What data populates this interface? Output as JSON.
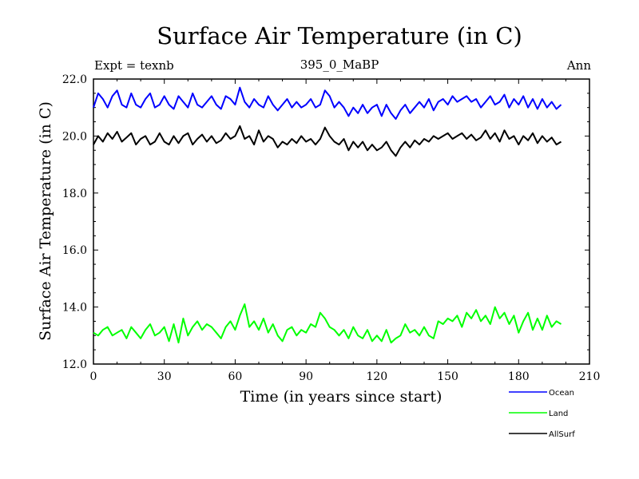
{
  "chart_data": {
    "type": "line",
    "title": "Surface Air Temperature (in C)",
    "subtitle": "395_0_MaBP",
    "expt_label": "Expt = texnb",
    "season_label": "Ann",
    "xlabel": "Time (in years since start)",
    "ylabel": "Surface Air Temperature (in C)",
    "xlim": [
      0,
      210
    ],
    "ylim": [
      12,
      22
    ],
    "xticks": [
      0,
      30,
      60,
      90,
      120,
      150,
      180,
      210
    ],
    "yticks": [
      "12.0",
      "14.0",
      "16.0",
      "18.0",
      "20.0",
      "22.0"
    ],
    "series": [
      {
        "name": "Ocean",
        "color": "#0000ff",
        "x": [
          0,
          2,
          4,
          6,
          8,
          10,
          12,
          14,
          16,
          18,
          20,
          22,
          24,
          26,
          28,
          30,
          32,
          34,
          36,
          38,
          40,
          42,
          44,
          46,
          48,
          50,
          52,
          54,
          56,
          58,
          60,
          62,
          64,
          66,
          68,
          70,
          72,
          74,
          76,
          78,
          80,
          82,
          84,
          86,
          88,
          90,
          92,
          94,
          96,
          98,
          100,
          102,
          104,
          106,
          108,
          110,
          112,
          114,
          116,
          118,
          120,
          122,
          124,
          126,
          128,
          130,
          132,
          134,
          136,
          138,
          140,
          142,
          144,
          146,
          148,
          150,
          152,
          154,
          156,
          158,
          160,
          162,
          164,
          166,
          168,
          170,
          172,
          174,
          176,
          178,
          180,
          182,
          184,
          186,
          188,
          190,
          192,
          194,
          196,
          198
        ],
        "values": [
          21.0,
          21.5,
          21.3,
          21.0,
          21.4,
          21.6,
          21.1,
          21.0,
          21.5,
          21.1,
          21.0,
          21.3,
          21.5,
          21.0,
          21.1,
          21.4,
          21.1,
          20.95,
          21.4,
          21.2,
          21.0,
          21.5,
          21.1,
          21.0,
          21.2,
          21.4,
          21.1,
          20.95,
          21.4,
          21.3,
          21.1,
          21.7,
          21.2,
          21.0,
          21.3,
          21.1,
          21.0,
          21.4,
          21.1,
          20.9,
          21.1,
          21.3,
          21.0,
          21.2,
          21.0,
          21.1,
          21.3,
          21.0,
          21.1,
          21.6,
          21.4,
          21.0,
          21.2,
          21.0,
          20.7,
          21.0,
          20.8,
          21.1,
          20.8,
          21.0,
          21.1,
          20.7,
          21.1,
          20.8,
          20.6,
          20.9,
          21.1,
          20.8,
          21.0,
          21.2,
          21.0,
          21.3,
          20.9,
          21.2,
          21.3,
          21.1,
          21.4,
          21.2,
          21.3,
          21.4,
          21.2,
          21.3,
          21.0,
          21.2,
          21.4,
          21.1,
          21.2,
          21.45,
          21.0,
          21.3,
          21.1,
          21.4,
          21.0,
          21.3,
          20.95,
          21.3,
          21.0,
          21.2,
          20.95,
          21.1
        ]
      },
      {
        "name": "Land",
        "color": "#00ff00",
        "x": [
          0,
          2,
          4,
          6,
          8,
          10,
          12,
          14,
          16,
          18,
          20,
          22,
          24,
          26,
          28,
          30,
          32,
          34,
          36,
          38,
          40,
          42,
          44,
          46,
          48,
          50,
          52,
          54,
          56,
          58,
          60,
          62,
          64,
          66,
          68,
          70,
          72,
          74,
          76,
          78,
          80,
          82,
          84,
          86,
          88,
          90,
          92,
          94,
          96,
          98,
          100,
          102,
          104,
          106,
          108,
          110,
          112,
          114,
          116,
          118,
          120,
          122,
          124,
          126,
          128,
          130,
          132,
          134,
          136,
          138,
          140,
          142,
          144,
          146,
          148,
          150,
          152,
          154,
          156,
          158,
          160,
          162,
          164,
          166,
          168,
          170,
          172,
          174,
          176,
          178,
          180,
          182,
          184,
          186,
          188,
          190,
          192,
          194,
          196,
          198
        ],
        "values": [
          13.1,
          13.0,
          13.2,
          13.3,
          13.0,
          13.1,
          13.2,
          12.9,
          13.3,
          13.1,
          12.9,
          13.2,
          13.4,
          13.0,
          13.1,
          13.3,
          12.8,
          13.4,
          12.75,
          13.6,
          13.0,
          13.3,
          13.5,
          13.2,
          13.4,
          13.3,
          13.1,
          12.9,
          13.3,
          13.5,
          13.2,
          13.7,
          14.1,
          13.3,
          13.5,
          13.2,
          13.6,
          13.1,
          13.4,
          13.0,
          12.8,
          13.2,
          13.3,
          13.0,
          13.2,
          13.1,
          13.4,
          13.3,
          13.8,
          13.6,
          13.3,
          13.2,
          13.0,
          13.2,
          12.9,
          13.3,
          13.0,
          12.9,
          13.2,
          12.8,
          13.0,
          12.8,
          13.2,
          12.75,
          12.9,
          13.0,
          13.4,
          13.1,
          13.2,
          13.0,
          13.3,
          13.0,
          12.9,
          13.5,
          13.4,
          13.6,
          13.5,
          13.7,
          13.3,
          13.8,
          13.6,
          13.9,
          13.5,
          13.7,
          13.4,
          14.0,
          13.6,
          13.8,
          13.4,
          13.7,
          13.1,
          13.5,
          13.8,
          13.2,
          13.6,
          13.2,
          13.7,
          13.3,
          13.5,
          13.4
        ]
      },
      {
        "name": "AllSurf",
        "color": "#000000",
        "x": [
          0,
          2,
          4,
          6,
          8,
          10,
          12,
          14,
          16,
          18,
          20,
          22,
          24,
          26,
          28,
          30,
          32,
          34,
          36,
          38,
          40,
          42,
          44,
          46,
          48,
          50,
          52,
          54,
          56,
          58,
          60,
          62,
          64,
          66,
          68,
          70,
          72,
          74,
          76,
          78,
          80,
          82,
          84,
          86,
          88,
          90,
          92,
          94,
          96,
          98,
          100,
          102,
          104,
          106,
          108,
          110,
          112,
          114,
          116,
          118,
          120,
          122,
          124,
          126,
          128,
          130,
          132,
          134,
          136,
          138,
          140,
          142,
          144,
          146,
          148,
          150,
          152,
          154,
          156,
          158,
          160,
          162,
          164,
          166,
          168,
          170,
          172,
          174,
          176,
          178,
          180,
          182,
          184,
          186,
          188,
          190,
          192,
          194,
          196,
          198
        ],
        "values": [
          19.7,
          20.0,
          19.8,
          20.1,
          19.9,
          20.15,
          19.8,
          19.95,
          20.1,
          19.7,
          19.9,
          20.0,
          19.7,
          19.8,
          20.1,
          19.8,
          19.7,
          20.0,
          19.75,
          20.0,
          20.1,
          19.7,
          19.9,
          20.05,
          19.8,
          20.0,
          19.75,
          19.85,
          20.1,
          19.9,
          20.0,
          20.35,
          19.9,
          20.0,
          19.7,
          20.2,
          19.8,
          20.0,
          19.9,
          19.6,
          19.8,
          19.7,
          19.9,
          19.75,
          20.0,
          19.8,
          19.9,
          19.7,
          19.9,
          20.3,
          20.0,
          19.8,
          19.7,
          19.9,
          19.5,
          19.8,
          19.6,
          19.8,
          19.5,
          19.7,
          19.5,
          19.6,
          19.8,
          19.5,
          19.3,
          19.6,
          19.8,
          19.6,
          19.85,
          19.7,
          19.9,
          19.8,
          20.0,
          19.9,
          20.0,
          20.1,
          19.9,
          20.0,
          20.1,
          19.9,
          20.05,
          19.85,
          19.95,
          20.2,
          19.9,
          20.1,
          19.8,
          20.2,
          19.9,
          20.0,
          19.7,
          20.0,
          19.85,
          20.1,
          19.75,
          20.0,
          19.8,
          19.95,
          19.7,
          19.8
        ]
      }
    ]
  }
}
